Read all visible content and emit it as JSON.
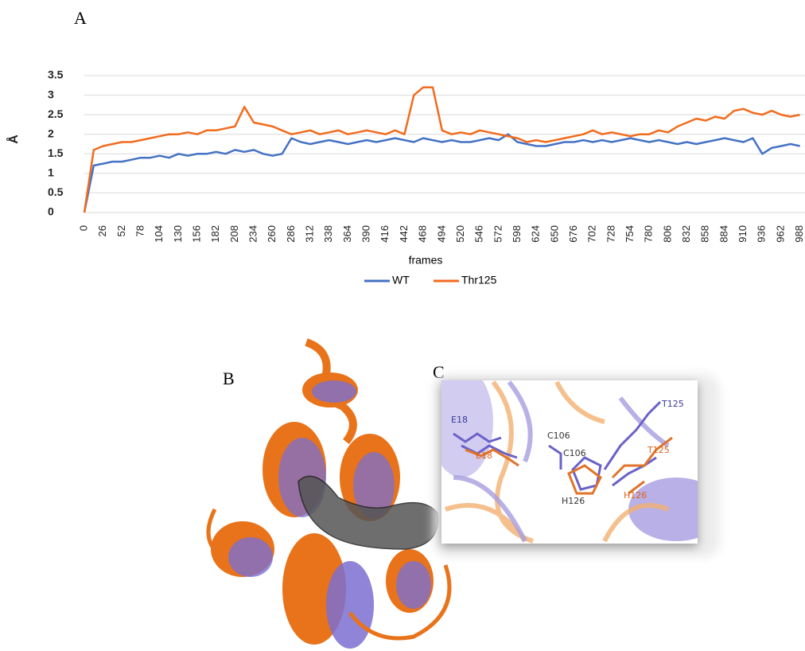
{
  "panel_labels": [
    "A",
    "B",
    "C"
  ],
  "chart_data": {
    "type": "line",
    "ylabel": "Å",
    "xlabel": "frames",
    "x": [
      0,
      13,
      26,
      39,
      52,
      65,
      78,
      91,
      104,
      117,
      130,
      143,
      156,
      169,
      182,
      195,
      208,
      221,
      234,
      247,
      260,
      273,
      286,
      299,
      312,
      325,
      338,
      351,
      364,
      377,
      390,
      403,
      416,
      429,
      442,
      455,
      468,
      481,
      494,
      507,
      520,
      533,
      546,
      559,
      572,
      585,
      598,
      611,
      624,
      637,
      650,
      663,
      676,
      689,
      702,
      715,
      728,
      741,
      754,
      767,
      780,
      793,
      806,
      819,
      832,
      845,
      858,
      871,
      884,
      897,
      910,
      923,
      936,
      949,
      962,
      975,
      988
    ],
    "series": [
      {
        "name": "WT",
        "color": "#4472c4",
        "values": [
          0,
          1.2,
          1.25,
          1.3,
          1.3,
          1.35,
          1.4,
          1.4,
          1.45,
          1.4,
          1.5,
          1.45,
          1.5,
          1.5,
          1.55,
          1.5,
          1.6,
          1.55,
          1.6,
          1.5,
          1.45,
          1.5,
          1.9,
          1.8,
          1.75,
          1.8,
          1.85,
          1.8,
          1.75,
          1.8,
          1.85,
          1.8,
          1.85,
          1.9,
          1.85,
          1.8,
          1.9,
          1.85,
          1.8,
          1.85,
          1.8,
          1.8,
          1.85,
          1.9,
          1.85,
          2.0,
          1.8,
          1.75,
          1.7,
          1.7,
          1.75,
          1.8,
          1.8,
          1.85,
          1.8,
          1.85,
          1.8,
          1.85,
          1.9,
          1.85,
          1.8,
          1.85,
          1.8,
          1.75,
          1.8,
          1.75,
          1.8,
          1.85,
          1.9,
          1.85,
          1.8,
          1.9,
          1.5,
          1.65,
          1.7,
          1.75,
          1.7
        ]
      },
      {
        "name": "Thr125",
        "color": "#f26b1d",
        "values": [
          0,
          1.6,
          1.7,
          1.75,
          1.8,
          1.8,
          1.85,
          1.9,
          1.95,
          2.0,
          2.0,
          2.05,
          2.0,
          2.1,
          2.1,
          2.15,
          2.2,
          2.7,
          2.3,
          2.25,
          2.2,
          2.1,
          2.0,
          2.05,
          2.1,
          2.0,
          2.05,
          2.1,
          2.0,
          2.05,
          2.1,
          2.05,
          2.0,
          2.1,
          2.0,
          3.0,
          3.2,
          3.2,
          2.1,
          2.0,
          2.05,
          2.0,
          2.1,
          2.05,
          2.0,
          1.95,
          1.9,
          1.8,
          1.85,
          1.8,
          1.85,
          1.9,
          1.95,
          2.0,
          2.1,
          2.0,
          2.05,
          2.0,
          1.95,
          2.0,
          2.0,
          2.1,
          2.05,
          2.2,
          2.3,
          2.4,
          2.35,
          2.45,
          2.4,
          2.6,
          2.65,
          2.55,
          2.5,
          2.6,
          2.5,
          2.45,
          2.5
        ]
      }
    ],
    "xlim": [
      0,
      995
    ],
    "xticks": [
      0,
      26,
      52,
      78,
      104,
      130,
      156,
      182,
      208,
      234,
      260,
      286,
      312,
      338,
      364,
      390,
      416,
      442,
      468,
      494,
      520,
      546,
      572,
      598,
      624,
      650,
      676,
      702,
      728,
      754,
      780,
      806,
      832,
      858,
      884,
      910,
      936,
      962,
      988
    ],
    "ylim": [
      0,
      3.5
    ],
    "yticks": [
      0,
      0.5,
      1,
      1.5,
      2,
      2.5,
      3,
      3.5
    ],
    "grid": true,
    "legend": "bottom"
  },
  "panel_c": {
    "labels": [
      {
        "text": "E18",
        "color": "#3a3a9a"
      },
      {
        "text": "E18",
        "color": "#e0621a"
      },
      {
        "text": "C106",
        "color": "#333333"
      },
      {
        "text": "C106",
        "color": "#333333"
      },
      {
        "text": "H126",
        "color": "#333333"
      },
      {
        "text": "H126",
        "color": "#e0621a"
      },
      {
        "text": "T125",
        "color": "#3a3a9a"
      },
      {
        "text": "T125",
        "color": "#e0621a"
      }
    ]
  }
}
